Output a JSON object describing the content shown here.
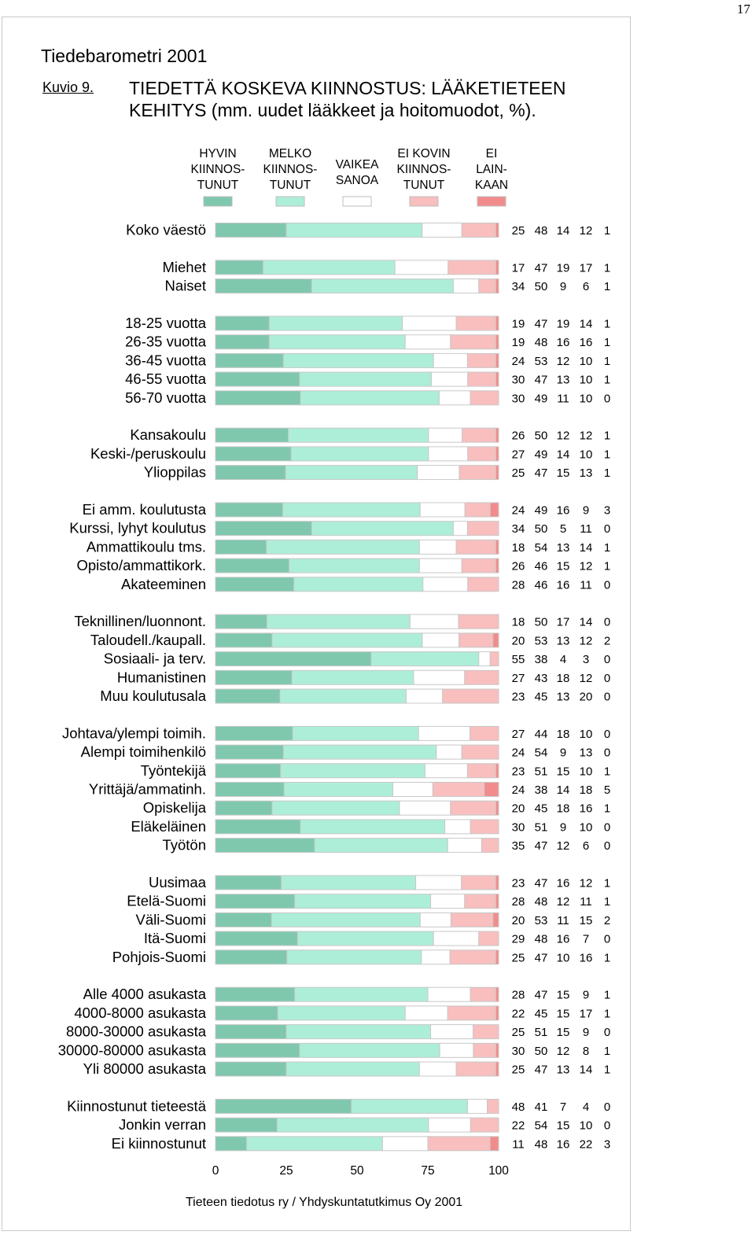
{
  "page": {
    "number": "17"
  },
  "header": {
    "report_title": "Tiedebarometri 2001",
    "figure_label": "Kuvio 9.",
    "figure_title_line1": "TIEDETTÄ KOSKEVA KIINNOSTUS: LÄÄKETIETEEN",
    "figure_title_line2": "KEHITYS (mm. uudet lääkkeet ja hoitomuodot, %)."
  },
  "footer": {
    "source": "Tieteen tiedotus ry / Yhdyskuntatutkimus Oy 2001"
  },
  "chart_data": {
    "type": "bar",
    "orientation": "horizontal",
    "stacked": true,
    "xlim": [
      0,
      100
    ],
    "xticks": [
      0,
      25,
      50,
      75,
      100
    ],
    "xlabel": "",
    "ylabel": "",
    "grid": false,
    "legend_position": "top",
    "series": [
      {
        "name": "HYVIN KIINNOS-TUNUT",
        "label_lines": [
          "HYVIN",
          "KIINNOS-",
          "TUNUT"
        ],
        "color": "#7fc8ae"
      },
      {
        "name": "MELKO KIINNOS-TUNUT",
        "label_lines": [
          "MELKO",
          "KIINNOS-",
          "TUNUT"
        ],
        "color": "#adeed8"
      },
      {
        "name": "VAIKEA SANOA",
        "label_lines": [
          "VAIKEA",
          "SANOA"
        ],
        "color": "#ffffff"
      },
      {
        "name": "EI KOVIN KIINNOS-TUNUT",
        "label_lines": [
          "EI KOVIN",
          "KIINNOS-",
          "TUNUT"
        ],
        "color": "#f9bebe"
      },
      {
        "name": "EI LAIN-KAAN",
        "label_lines": [
          "EI",
          "LAIN-",
          "KAAN"
        ],
        "color": "#f28c8c"
      }
    ],
    "groups": [
      {
        "rows": [
          {
            "label": "Koko väestö",
            "values": [
              25,
              48,
              14,
              12,
              1
            ]
          }
        ]
      },
      {
        "rows": [
          {
            "label": "Miehet",
            "values": [
              17,
              47,
              19,
              17,
              1
            ]
          },
          {
            "label": "Naiset",
            "values": [
              34,
              50,
              9,
              6,
              1
            ]
          }
        ]
      },
      {
        "rows": [
          {
            "label": "18-25 vuotta",
            "values": [
              19,
              47,
              19,
              14,
              1
            ]
          },
          {
            "label": "26-35 vuotta",
            "values": [
              19,
              48,
              16,
              16,
              1
            ]
          },
          {
            "label": "36-45 vuotta",
            "values": [
              24,
              53,
              12,
              10,
              1
            ]
          },
          {
            "label": "46-55 vuotta",
            "values": [
              30,
              47,
              13,
              10,
              1
            ]
          },
          {
            "label": "56-70 vuotta",
            "values": [
              30,
              49,
              11,
              10,
              0
            ]
          }
        ]
      },
      {
        "rows": [
          {
            "label": "Kansakoulu",
            "values": [
              26,
              50,
              12,
              12,
              1
            ]
          },
          {
            "label": "Keski-/peruskoulu",
            "values": [
              27,
              49,
              14,
              10,
              1
            ]
          },
          {
            "label": "Ylioppilas",
            "values": [
              25,
              47,
              15,
              13,
              1
            ]
          }
        ]
      },
      {
        "rows": [
          {
            "label": "Ei amm. koulutusta",
            "values": [
              24,
              49,
              16,
              9,
              3
            ]
          },
          {
            "label": "Kurssi, lyhyt koulutus",
            "values": [
              34,
              50,
              5,
              11,
              0
            ]
          },
          {
            "label": "Ammattikoulu tms.",
            "values": [
              18,
              54,
              13,
              14,
              1
            ]
          },
          {
            "label": "Opisto/ammattikork.",
            "values": [
              26,
              46,
              15,
              12,
              1
            ]
          },
          {
            "label": "Akateeminen",
            "values": [
              28,
              46,
              16,
              11,
              0
            ]
          }
        ]
      },
      {
        "rows": [
          {
            "label": "Teknillinen/luonnont.",
            "values": [
              18,
              50,
              17,
              14,
              0
            ]
          },
          {
            "label": "Taloudell./kaupall.",
            "values": [
              20,
              53,
              13,
              12,
              2
            ]
          },
          {
            "label": "Sosiaali- ja terv.",
            "values": [
              55,
              38,
              4,
              3,
              0
            ]
          },
          {
            "label": "Humanistinen",
            "values": [
              27,
              43,
              18,
              12,
              0
            ]
          },
          {
            "label": "Muu koulutusala",
            "values": [
              23,
              45,
              13,
              20,
              0
            ]
          }
        ]
      },
      {
        "rows": [
          {
            "label": "Johtava/ylempi toimih.",
            "values": [
              27,
              44,
              18,
              10,
              0
            ]
          },
          {
            "label": "Alempi toimihenkilö",
            "values": [
              24,
              54,
              9,
              13,
              0
            ]
          },
          {
            "label": "Työntekijä",
            "values": [
              23,
              51,
              15,
              10,
              1
            ]
          },
          {
            "label": "Yrittäjä/ammatinh.",
            "values": [
              24,
              38,
              14,
              18,
              5
            ]
          },
          {
            "label": "Opiskelija",
            "values": [
              20,
              45,
              18,
              16,
              1
            ]
          },
          {
            "label": "Eläkeläinen",
            "values": [
              30,
              51,
              9,
              10,
              0
            ]
          },
          {
            "label": "Työtön",
            "values": [
              35,
              47,
              12,
              6,
              0
            ]
          }
        ]
      },
      {
        "rows": [
          {
            "label": "Uusimaa",
            "values": [
              23,
              47,
              16,
              12,
              1
            ]
          },
          {
            "label": "Etelä-Suomi",
            "values": [
              28,
              48,
              12,
              11,
              1
            ]
          },
          {
            "label": "Väli-Suomi",
            "values": [
              20,
              53,
              11,
              15,
              2
            ]
          },
          {
            "label": "Itä-Suomi",
            "values": [
              29,
              48,
              16,
              7,
              0
            ]
          },
          {
            "label": "Pohjois-Suomi",
            "values": [
              25,
              47,
              10,
              16,
              1
            ]
          }
        ]
      },
      {
        "rows": [
          {
            "label": "Alle 4000 asukasta",
            "values": [
              28,
              47,
              15,
              9,
              1
            ]
          },
          {
            "label": "4000-8000 asukasta",
            "values": [
              22,
              45,
              15,
              17,
              1
            ]
          },
          {
            "label": "8000-30000 asukasta",
            "values": [
              25,
              51,
              15,
              9,
              0
            ]
          },
          {
            "label": "30000-80000 asukasta",
            "values": [
              30,
              50,
              12,
              8,
              1
            ]
          },
          {
            "label": "Yli 80000 asukasta",
            "values": [
              25,
              47,
              13,
              14,
              1
            ]
          }
        ]
      },
      {
        "rows": [
          {
            "label": "Kiinnostunut tieteestä",
            "values": [
              48,
              41,
              7,
              4,
              0
            ]
          },
          {
            "label": "Jonkin verran",
            "values": [
              22,
              54,
              15,
              10,
              0
            ]
          },
          {
            "label": "Ei kiinnostunut",
            "values": [
              11,
              48,
              16,
              22,
              3
            ]
          }
        ]
      }
    ]
  }
}
